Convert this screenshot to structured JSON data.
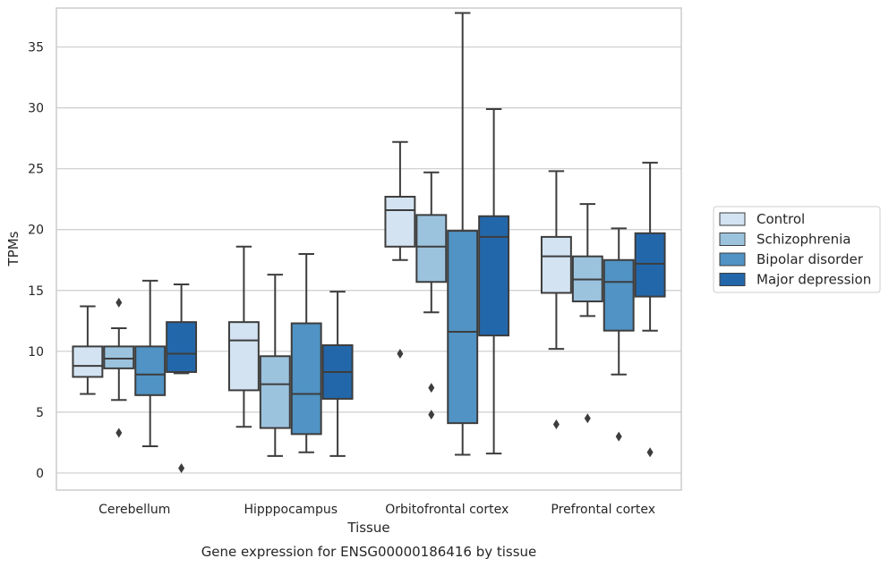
{
  "chart_data": {
    "type": "box",
    "title": "",
    "xlabel": "Tissue",
    "ylabel": "TPMs",
    "caption": "Gene expression for ENSG00000186416 by tissue",
    "ylim": [
      -1.4,
      38.2
    ],
    "yticks": [
      0,
      5,
      10,
      15,
      20,
      25,
      30,
      35
    ],
    "grid": "horizontal",
    "legend_position": "right",
    "categories": [
      "Cerebellum",
      "Hipppocampus",
      "Orbitofrontal cortex",
      "Prefrontal cortex"
    ],
    "series": [
      {
        "name": "Control",
        "color": "#d3e3f2",
        "boxes": [
          {
            "whislo": 6.5,
            "q1": 7.9,
            "med": 8.8,
            "q3": 10.4,
            "whishi": 13.7,
            "fliers": []
          },
          {
            "whislo": 3.8,
            "q1": 6.8,
            "med": 10.9,
            "q3": 12.4,
            "whishi": 18.6,
            "fliers": []
          },
          {
            "whislo": 17.5,
            "q1": 18.6,
            "med": 21.6,
            "q3": 22.7,
            "whishi": 27.2,
            "fliers": [
              9.8
            ]
          },
          {
            "whislo": 10.2,
            "q1": 14.8,
            "med": 17.8,
            "q3": 19.4,
            "whishi": 24.8,
            "fliers": [
              4.0
            ]
          }
        ]
      },
      {
        "name": "Schizophrenia",
        "color": "#9cc3de",
        "boxes": [
          {
            "whislo": 6.0,
            "q1": 8.6,
            "med": 9.4,
            "q3": 10.4,
            "whishi": 11.9,
            "fliers": [
              3.3,
              14.0
            ]
          },
          {
            "whislo": 1.4,
            "q1": 3.7,
            "med": 7.3,
            "q3": 9.6,
            "whishi": 16.3,
            "fliers": []
          },
          {
            "whislo": 13.2,
            "q1": 15.7,
            "med": 18.6,
            "q3": 21.2,
            "whishi": 24.7,
            "fliers": [
              7.0,
              4.8
            ]
          },
          {
            "whislo": 12.9,
            "q1": 14.1,
            "med": 15.9,
            "q3": 17.8,
            "whishi": 22.1,
            "fliers": [
              4.5
            ]
          }
        ]
      },
      {
        "name": "Bipolar disorder",
        "color": "#5093c4",
        "boxes": [
          {
            "whislo": 2.2,
            "q1": 6.4,
            "med": 8.1,
            "q3": 10.4,
            "whishi": 15.8,
            "fliers": []
          },
          {
            "whislo": 1.7,
            "q1": 3.2,
            "med": 6.5,
            "q3": 12.3,
            "whishi": 18.0,
            "fliers": []
          },
          {
            "whislo": 1.5,
            "q1": 4.1,
            "med": 11.6,
            "q3": 19.9,
            "whishi": 37.8,
            "fliers": []
          },
          {
            "whislo": 8.1,
            "q1": 11.7,
            "med": 15.7,
            "q3": 17.5,
            "whishi": 20.1,
            "fliers": [
              3.0
            ]
          }
        ]
      },
      {
        "name": "Major depression",
        "color": "#2367ab",
        "boxes": [
          {
            "whislo": 8.2,
            "q1": 8.3,
            "med": 9.8,
            "q3": 12.4,
            "whishi": 15.5,
            "fliers": [
              0.4
            ]
          },
          {
            "whislo": 1.4,
            "q1": 6.1,
            "med": 8.3,
            "q3": 10.5,
            "whishi": 14.9,
            "fliers": []
          },
          {
            "whislo": 1.6,
            "q1": 11.3,
            "med": 19.4,
            "q3": 21.1,
            "whishi": 29.9,
            "fliers": []
          },
          {
            "whislo": 11.7,
            "q1": 14.5,
            "med": 17.2,
            "q3": 19.7,
            "whishi": 25.5,
            "fliers": [
              1.7
            ]
          }
        ]
      }
    ]
  }
}
